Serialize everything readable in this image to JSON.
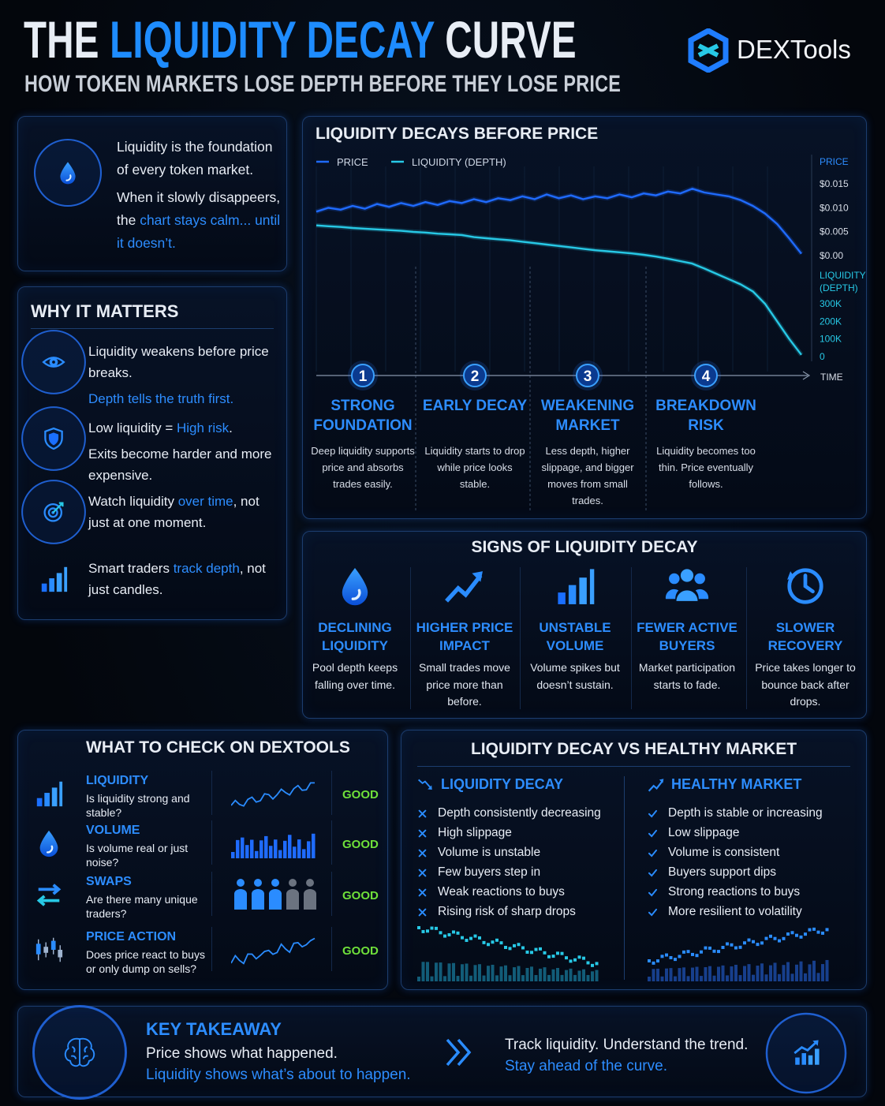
{
  "header": {
    "title": [
      {
        "text": "THE "
      },
      {
        "text": "LIQUIDITY DECAY",
        "accent": true
      },
      {
        "text": " CURVE"
      }
    ],
    "subtitle": "HOW TOKEN MARKETS LOSE DEPTH BEFORE THEY LOSE PRICE",
    "brand": "DEXTools"
  },
  "intro": {
    "paras": [
      [
        {
          "text": "Liquidity is the foundation of every token market."
        }
      ],
      [
        {
          "text": "When it slowly disappeers, the "
        },
        {
          "text": "chart stays calm... until it doesn’t.",
          "accent": true
        }
      ]
    ]
  },
  "why": {
    "title": "WHY IT MATTERS",
    "items": [
      {
        "paras": [
          [
            {
              "text": "Liquidity weakens before price breaks."
            }
          ],
          [
            {
              "text": "Depth tells the truth first.",
              "accent": true
            }
          ]
        ]
      },
      {
        "paras": [
          [
            {
              "text": "Low liquidity = "
            },
            {
              "text": "High risk",
              "accent": true
            },
            {
              "text": "."
            }
          ],
          [
            {
              "text": "Exits become harder and more expensive."
            }
          ]
        ]
      },
      {
        "paras": [
          [
            {
              "text": "Watch liquidity "
            },
            {
              "text": "over time",
              "accent": true
            },
            {
              "text": ", not just at one moment."
            }
          ]
        ]
      },
      {
        "paras": [
          [
            {
              "text": "Smart traders "
            },
            {
              "text": "track depth",
              "accent": true
            },
            {
              "text": ", not just candles."
            }
          ]
        ]
      }
    ]
  },
  "chart_data": {
    "type": "line",
    "title": "LIQUIDITY DECAYS BEFORE PRICE",
    "xlabel": "TIME",
    "ylabel": "PRICE",
    "y2label": "LIQUIDITY (DEPTH)",
    "series": [
      {
        "name": "PRICE",
        "color": "#1f6bff",
        "values": [
          0.0092,
          0.01,
          0.0096,
          0.0104,
          0.0098,
          0.0108,
          0.0102,
          0.011,
          0.0104,
          0.0112,
          0.0106,
          0.0114,
          0.011,
          0.0118,
          0.0112,
          0.012,
          0.0116,
          0.0124,
          0.0118,
          0.0128,
          0.012,
          0.0126,
          0.0118,
          0.0124,
          0.012,
          0.0128,
          0.0122,
          0.013,
          0.0126,
          0.0134,
          0.013,
          0.014,
          0.0132,
          0.0128,
          0.0124,
          0.0116,
          0.0104,
          0.0088,
          0.0066,
          0.0036,
          0.0004
        ]
      },
      {
        "name": "LIQUIDITY (DEPTH)",
        "color": "#27c9e6",
        "axis": "y2",
        "values": [
          745000,
          740000,
          736000,
          730000,
          726000,
          722000,
          718000,
          714000,
          708000,
          704000,
          698000,
          694000,
          690000,
          678000,
          672000,
          666000,
          660000,
          652000,
          644000,
          636000,
          628000,
          620000,
          612000,
          604000,
          598000,
          592000,
          586000,
          578000,
          568000,
          556000,
          542000,
          528000,
          500000,
          470000,
          440000,
          410000,
          370000,
          300000,
          200000,
          100000,
          10000
        ]
      }
    ],
    "ylim": [
      -0.0226,
      0.0203
    ],
    "yticks": [
      {
        "value": 0.015,
        "label": "$0.015"
      },
      {
        "value": 0.01,
        "label": "$0.010"
      },
      {
        "value": 0.005,
        "label": "$0.005"
      },
      {
        "value": 0,
        "label": "$0.00"
      }
    ],
    "y2lim": [
      -40000,
      1124000
    ],
    "y2ticks": [
      {
        "value": 300000,
        "label": "300K"
      },
      {
        "value": 200000,
        "label": "200K"
      },
      {
        "value": 100000,
        "label": "100K"
      },
      0
    ]
  },
  "stages": [
    {
      "number": "1",
      "title": "STRONG FOUNDATION",
      "text": "Deep liquidity supports price and absorbs trades easily."
    },
    {
      "number": "2",
      "title": "EARLY DECAY",
      "text": "Liquidity starts to drop while price looks stable."
    },
    {
      "number": "3",
      "title": "WEAKENING MARKET",
      "text": "Less depth, higher slippage, and bigger moves from small trades."
    },
    {
      "number": "4",
      "title": "BREAKDOWN RISK",
      "text": "Liquidity becomes too thin. Price eventually follows."
    }
  ],
  "signs": {
    "title": "SIGNS OF LIQUIDITY DECAY",
    "items": [
      {
        "title": "DECLINING LIQUIDITY",
        "text": "Pool depth keeps falling over time."
      },
      {
        "title": "HIGHER PRICE IMPACT",
        "text": "Small trades move price more than before."
      },
      {
        "title": "UNSTABLE VOLUME",
        "text": "Volume spikes but doesn’t sustain."
      },
      {
        "title": "FEWER ACTIVE BUYERS",
        "text": "Market participation starts to fade."
      },
      {
        "title": "SLOWER RECOVERY",
        "text": "Price takes longer to bounce back after drops."
      }
    ]
  },
  "check": {
    "title": "WHAT TO CHECK ON DEXTOOLS",
    "items": [
      {
        "name": "LIQUIDITY",
        "question": "Is liquidity strong and stable?",
        "status": "GOOD"
      },
      {
        "name": "VOLUME",
        "question": "Is volume real or just noise?",
        "status": "GOOD"
      },
      {
        "name": "SWAPS",
        "question": "Are there many unique traders?",
        "status": "GOOD"
      },
      {
        "name": "PRICE ACTION",
        "question": "Does price react to buys or only dump on sells?",
        "status": "GOOD"
      }
    ]
  },
  "compare": {
    "title": "LIQUIDITY DECAY VS HEALTHY MARKET",
    "decay": {
      "heading": "LIQUIDITY DECAY",
      "items": [
        "Depth consistently decreasing",
        "High slippage",
        "Volume is unstable",
        "Few buyers step in",
        "Weak reactions to buys",
        "Rising risk of sharp drops"
      ]
    },
    "healthy": {
      "heading": "HEALTHY MARKET",
      "items": [
        "Depth is stable or increasing",
        "Low slippage",
        "Volume is consistent",
        "Buyers support dips",
        "Strong reactions to buys",
        "More resilient to volatility"
      ]
    }
  },
  "takeaway": {
    "heading": "KEY TAKEAWAY",
    "line1": "Price shows what happened.",
    "line2": "Liquidity shows what’s about to happen.",
    "right1": "Track liquidity. Understand the trend.",
    "right2": "Stay ahead of the curve."
  }
}
